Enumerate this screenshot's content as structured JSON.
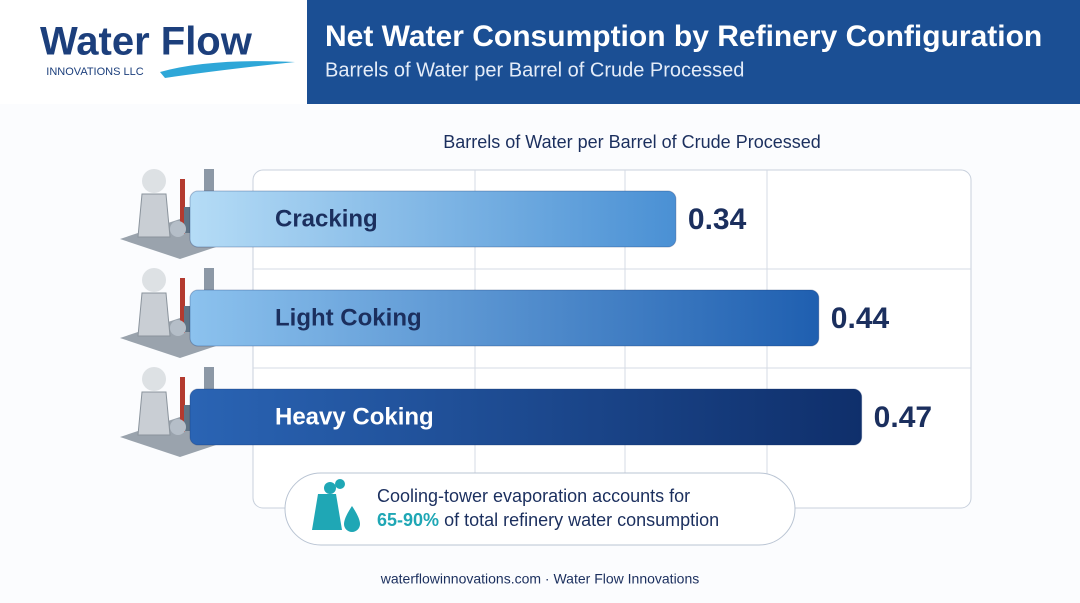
{
  "header": {
    "logo_name": "Water Flow",
    "logo_sub": "INNOVATIONS LLC"
  },
  "chart_data": {
    "type": "bar",
    "orientation": "horizontal",
    "title": "Net Water Consumption by Refinery Configuration",
    "subtitle": "Barrels of Water per Barrel of Crude Processed",
    "axis_title": "Barrels of Water per Barrel of Crude Processed",
    "categories": [
      "Cracking",
      "Light Coking",
      "Heavy Coking"
    ],
    "values": [
      0.34,
      0.44,
      0.47
    ],
    "colors": [
      [
        "#b5dcf6",
        "#4a90d4"
      ],
      [
        "#8cc2ee",
        "#1f5fb0"
      ],
      [
        "#2a64b4",
        "#0f2f6b"
      ]
    ],
    "label_colors": [
      "#1b2f5e",
      "#1b2f5e",
      "#ffffff"
    ],
    "xlim": [
      0,
      0.55
    ]
  },
  "annotation": {
    "text_1": "Cooling-tower evaporation accounts for",
    "highlight": "65-90%",
    "text_2": "of total refinery water consumption"
  },
  "footer": "waterflowinnovations.com · Water Flow Innovations"
}
